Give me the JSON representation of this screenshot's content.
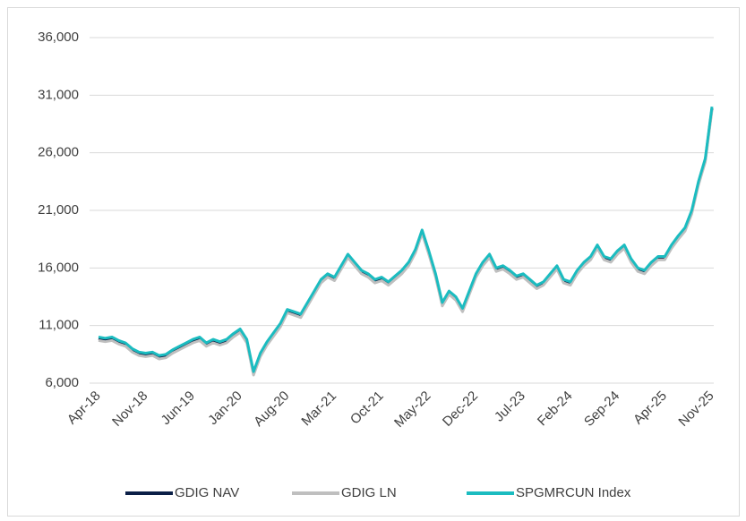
{
  "chart_data": {
    "type": "line",
    "categories": [
      "Apr-18",
      null,
      null,
      null,
      null,
      null,
      null,
      "Nov-18",
      null,
      null,
      null,
      null,
      null,
      null,
      "Jun-19",
      null,
      null,
      null,
      null,
      null,
      null,
      "Jan-20",
      null,
      null,
      null,
      null,
      null,
      null,
      "Aug-20",
      null,
      null,
      null,
      null,
      null,
      null,
      "Mar-21",
      null,
      null,
      null,
      null,
      null,
      null,
      "Oct-21",
      null,
      null,
      null,
      null,
      null,
      null,
      "May-22",
      null,
      null,
      null,
      null,
      null,
      null,
      "Dec-22",
      null,
      null,
      null,
      null,
      null,
      null,
      "Jul-23",
      null,
      null,
      null,
      null,
      null,
      null,
      "Feb-24",
      null,
      null,
      null,
      null,
      null,
      null,
      "Sep-24",
      null,
      null,
      null,
      null,
      null,
      null,
      "Apr-25",
      null,
      null,
      null,
      null,
      null,
      null,
      "Nov-25"
    ],
    "series": [
      {
        "name": "GDIG NAV",
        "color": "#0b1f47",
        "values": [
          9850,
          9750,
          9850,
          9550,
          9350,
          8850,
          8550,
          8450,
          8550,
          8250,
          8350,
          8750,
          9050,
          9350,
          9650,
          9850,
          9350,
          9650,
          9450,
          9650,
          10150,
          10550,
          9650,
          6850,
          8450,
          9450,
          10250,
          11050,
          12250,
          12050,
          11850,
          12850,
          13850,
          14850,
          15350,
          15050,
          16050,
          17050,
          16350,
          15650,
          15350,
          14850,
          15050,
          14650,
          15150,
          15650,
          16350,
          17450,
          19150,
          17350,
          15350,
          12850,
          13850,
          13350,
          12350,
          13850,
          15350,
          16350,
          17050,
          15850,
          16050,
          15650,
          15150,
          15350,
          14850,
          14350,
          14650,
          15350,
          16050,
          14850,
          14650,
          15650,
          16350,
          16850,
          17850,
          16850,
          16650,
          17350,
          17850,
          16650,
          15850,
          15650,
          16350,
          16850,
          16850,
          17850,
          18650,
          19350,
          20850,
          23350,
          25350,
          29850
        ]
      },
      {
        "name": "GDIG LN",
        "color": "#bfbfbf",
        "values": [
          9700,
          9600,
          9700,
          9400,
          9200,
          8700,
          8400,
          8300,
          8400,
          8100,
          8200,
          8600,
          8900,
          9200,
          9500,
          9700,
          9200,
          9500,
          9300,
          9500,
          10000,
          10400,
          9500,
          6700,
          8300,
          9300,
          10100,
          10900,
          12100,
          11900,
          11700,
          12700,
          13700,
          14700,
          15200,
          14900,
          15900,
          16900,
          16200,
          15500,
          15200,
          14700,
          14900,
          14500,
          15000,
          15500,
          16200,
          17300,
          19000,
          17200,
          15200,
          12700,
          13700,
          13200,
          12200,
          13700,
          15200,
          16200,
          16900,
          15700,
          15900,
          15500,
          15000,
          15200,
          14700,
          14200,
          14500,
          15200,
          15900,
          14700,
          14500,
          15500,
          16200,
          16700,
          17700,
          16700,
          16500,
          17200,
          17700,
          16500,
          15700,
          15500,
          16200,
          16700,
          16700,
          17700,
          18500,
          19200,
          20700,
          23200,
          25200,
          29700
        ]
      },
      {
        "name": "SPGMRCUN Index",
        "color": "#1bbcc0",
        "values": [
          10000,
          9900,
          10000,
          9700,
          9500,
          9000,
          8700,
          8600,
          8700,
          8400,
          8500,
          8900,
          9200,
          9500,
          9800,
          10000,
          9500,
          9800,
          9600,
          9800,
          10300,
          10700,
          9800,
          7000,
          8600,
          9600,
          10400,
          11200,
          12400,
          12200,
          12000,
          13000,
          14000,
          15000,
          15500,
          15200,
          16200,
          17200,
          16500,
          15800,
          15500,
          15000,
          15200,
          14800,
          15300,
          15800,
          16500,
          17600,
          19300,
          17500,
          15500,
          13000,
          14000,
          13500,
          12500,
          14000,
          15500,
          16500,
          17200,
          16000,
          16200,
          15800,
          15300,
          15500,
          15000,
          14500,
          14800,
          15500,
          16200,
          15000,
          14800,
          15800,
          16500,
          17000,
          18000,
          17000,
          16800,
          17500,
          18000,
          16800,
          16000,
          15800,
          16500,
          17000,
          17000,
          18000,
          18800,
          19500,
          21000,
          23500,
          25500,
          30000
        ]
      }
    ],
    "ylim": [
      6000,
      36000
    ],
    "yticks": [
      {
        "value": 6000,
        "label": "6,000"
      },
      {
        "value": 11000,
        "label": "11,000"
      },
      {
        "value": 16000,
        "label": "16,000"
      },
      {
        "value": 21000,
        "label": "21,000"
      },
      {
        "value": 26000,
        "label": "26,000"
      },
      {
        "value": 31000,
        "label": "31,000"
      },
      {
        "value": 36000,
        "label": "36,000"
      }
    ],
    "grid": true,
    "legend": "bottom"
  }
}
